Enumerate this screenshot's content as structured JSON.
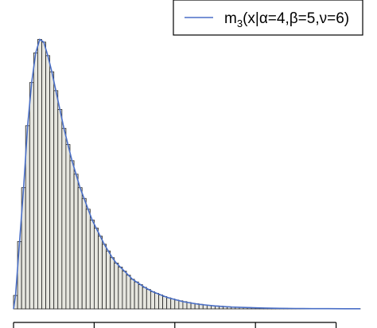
{
  "chart_data": {
    "type": "bar",
    "subtype": "histogram-with-density-curve",
    "xlim": [
      0,
      4.3
    ],
    "ylim": [
      0,
      1.04
    ],
    "x_ticks": [
      0,
      1,
      2,
      3,
      4
    ],
    "x_tick_labels_visible": false,
    "y_axis_visible": false,
    "grid": false,
    "legend_position": "top-right",
    "bin_width": 0.05,
    "bin_starts": [
      0.0,
      0.05,
      0.1,
      0.15,
      0.2,
      0.25,
      0.3,
      0.35,
      0.4,
      0.45,
      0.5,
      0.55,
      0.6,
      0.65,
      0.7,
      0.75,
      0.8,
      0.85,
      0.9,
      0.95,
      1.0,
      1.05,
      1.1,
      1.15,
      1.2,
      1.25,
      1.3,
      1.35,
      1.4,
      1.45,
      1.5,
      1.55,
      1.6,
      1.65,
      1.7,
      1.75,
      1.8,
      1.85,
      1.9,
      1.95,
      2.0,
      2.05,
      2.1,
      2.15,
      2.2,
      2.25,
      2.3,
      2.35,
      2.4,
      2.45,
      2.5,
      2.55,
      2.6,
      2.65,
      2.7,
      2.75,
      2.8,
      2.85,
      2.9,
      2.95,
      3.0,
      3.05,
      3.1,
      3.15,
      3.2,
      3.25,
      3.3,
      3.35,
      3.4,
      3.45,
      3.5,
      3.55,
      3.6,
      3.65,
      3.7,
      3.75,
      3.8,
      3.85,
      3.9,
      3.95,
      4.0,
      4.05,
      4.1,
      4.15,
      4.2,
      4.25
    ],
    "values": [
      0.05,
      0.25,
      0.45,
      0.68,
      0.84,
      0.95,
      1.0,
      0.99,
      0.94,
      0.88,
      0.81,
      0.74,
      0.67,
      0.61,
      0.55,
      0.5,
      0.45,
      0.41,
      0.37,
      0.33,
      0.3,
      0.27,
      0.24,
      0.215,
      0.19,
      0.17,
      0.155,
      0.14,
      0.125,
      0.11,
      0.1,
      0.09,
      0.08,
      0.072,
      0.064,
      0.058,
      0.052,
      0.046,
      0.041,
      0.037,
      0.033,
      0.03,
      0.027,
      0.024,
      0.021,
      0.019,
      0.017,
      0.015,
      0.013,
      0.012,
      0.011,
      0.01,
      0.009,
      0.008,
      0.007,
      0.006,
      0.006,
      0.005,
      0.005,
      0.004,
      0.004,
      0.0035,
      0.003,
      0.003,
      0.0025,
      0.002,
      0.002,
      0.002,
      0.0018,
      0.0016,
      0.0015,
      0.0014,
      0.0013,
      0.0012,
      0.0011,
      0.001,
      0.001,
      0.0009,
      0.0008,
      0.0008,
      0.0007,
      0.0006,
      0.0006,
      0.0005,
      0.0005,
      0.0004
    ],
    "series": [
      {
        "name": "m3(x|α=4,β=5,ν=6)",
        "type": "line",
        "color": "#4a6fc7",
        "x": [
          0.0,
          0.025,
          0.075,
          0.125,
          0.175,
          0.225,
          0.275,
          0.325,
          0.375,
          0.425,
          0.475,
          0.525,
          0.575,
          0.625,
          0.675,
          0.725,
          0.775,
          0.825,
          0.875,
          0.925,
          0.975,
          1.025,
          1.075,
          1.125,
          1.175,
          1.225,
          1.275,
          1.325,
          1.375,
          1.425,
          1.475,
          1.525,
          1.575,
          1.625,
          1.675,
          1.725,
          1.775,
          1.825,
          1.875,
          1.925,
          1.975,
          2.1,
          2.3,
          2.5,
          2.7,
          2.9,
          3.1,
          3.3,
          3.5,
          3.7,
          3.9,
          4.1,
          4.3
        ],
        "y": [
          0.0,
          0.05,
          0.25,
          0.45,
          0.68,
          0.84,
          0.95,
          1.0,
          0.99,
          0.94,
          0.88,
          0.81,
          0.74,
          0.67,
          0.61,
          0.55,
          0.5,
          0.45,
          0.41,
          0.37,
          0.33,
          0.3,
          0.27,
          0.24,
          0.215,
          0.19,
          0.17,
          0.155,
          0.14,
          0.125,
          0.11,
          0.1,
          0.09,
          0.08,
          0.072,
          0.064,
          0.058,
          0.052,
          0.046,
          0.041,
          0.037,
          0.027,
          0.017,
          0.011,
          0.007,
          0.005,
          0.003,
          0.002,
          0.0015,
          0.001,
          0.0008,
          0.0006,
          0.0004
        ]
      }
    ],
    "legend": {
      "text_main": "m",
      "text_sub": "3",
      "text_rest": "(x|α=4,β=5,ν=6)"
    },
    "colors": {
      "bar_fill": "#e6e6df",
      "bar_stroke": "#222222",
      "curve": "#4a6fc7",
      "axis": "#000000"
    }
  }
}
